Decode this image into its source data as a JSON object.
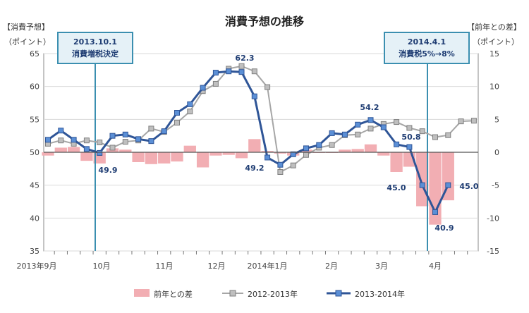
{
  "chart_data": {
    "type": "line",
    "title": "消費予想の推移",
    "left_axis": {
      "label": "【消費予想】",
      "unit": "（ポイント）",
      "ylim": [
        35,
        65
      ],
      "ticks": [
        65,
        60,
        55,
        50,
        45,
        40,
        35
      ]
    },
    "right_axis": {
      "label": "【前年との差】",
      "unit": "（ポイント）",
      "ylim": [
        -15,
        15
      ],
      "ticks": [
        15,
        10,
        5,
        0,
        -5,
        -10,
        -15
      ]
    },
    "x_tick_labels": [
      "2013年9月",
      "10月",
      "11月",
      "12月",
      "2014年1月",
      "2月",
      "3月",
      "4月"
    ],
    "legend": {
      "items": [
        "前年との差",
        "2012-2013年",
        "2013-2014年"
      ],
      "position": "bottom"
    },
    "callouts": [
      {
        "line1": "2013.10.1",
        "line2": "消費増税決定"
      },
      {
        "line1": "2014.4.1",
        "line2": "消費税5%→8%"
      }
    ],
    "data_labels": [
      {
        "text": "62.3",
        "series": "2012-2013年"
      },
      {
        "text": "49.9",
        "series": "2013-2014年"
      },
      {
        "text": "49.2",
        "series": "2013-2014年"
      },
      {
        "text": "54.2",
        "series": "2013-2014年"
      },
      {
        "text": "50.8",
        "series": "2013-2014年"
      },
      {
        "text": "45.0",
        "series": "2013-2014年"
      },
      {
        "text": "40.9",
        "series": "2013-2014年"
      },
      {
        "text": "45.0",
        "series": "2013-2014年"
      }
    ],
    "series": [
      {
        "name": "前年との差",
        "kind": "bar",
        "axis": "right",
        "color": "#f2aeb3",
        "values": [
          -0.5,
          0.7,
          0.8,
          -1.3,
          -1.7,
          0.6,
          0.4,
          -1.5,
          -1.8,
          -1.7,
          -1.4,
          1.0,
          -2.3,
          -0.5,
          -0.4,
          -0.9,
          2.0,
          0.2,
          -0.2,
          -0.5,
          0.4,
          0.0,
          0.0,
          0.4,
          0.5,
          1.2,
          -0.5,
          -3.0,
          -2.2,
          -8.2,
          -11.0,
          -7.3
        ]
      },
      {
        "name": "2012-2013年",
        "kind": "line",
        "axis": "left",
        "color": "#a6a6a6",
        "values": [
          51.3,
          51.8,
          51.3,
          51.8,
          51.5,
          50.7,
          51.6,
          51.8,
          53.6,
          53.1,
          54.5,
          56.2,
          59.3,
          60.4,
          62.7,
          63.1,
          62.3,
          59.9,
          47.0,
          48.0,
          49.6,
          50.7,
          51.1,
          52.6,
          52.7,
          53.6,
          54.3,
          54.6,
          53.7,
          53.2,
          52.3,
          52.6,
          54.7,
          54.8
        ]
      },
      {
        "name": "2013-2014年",
        "kind": "line",
        "axis": "left",
        "color": "#2f5597",
        "values": [
          51.9,
          53.3,
          51.9,
          50.5,
          49.9,
          52.5,
          52.7,
          52.0,
          51.7,
          53.2,
          56.0,
          57.3,
          59.8,
          62.1,
          62.3,
          62.2,
          58.5,
          49.2,
          48.1,
          49.7,
          50.6,
          51.1,
          52.9,
          52.7,
          54.2,
          54.9,
          53.8,
          51.2,
          50.8,
          45.0,
          40.9,
          45.0
        ]
      }
    ],
    "grid": true
  }
}
